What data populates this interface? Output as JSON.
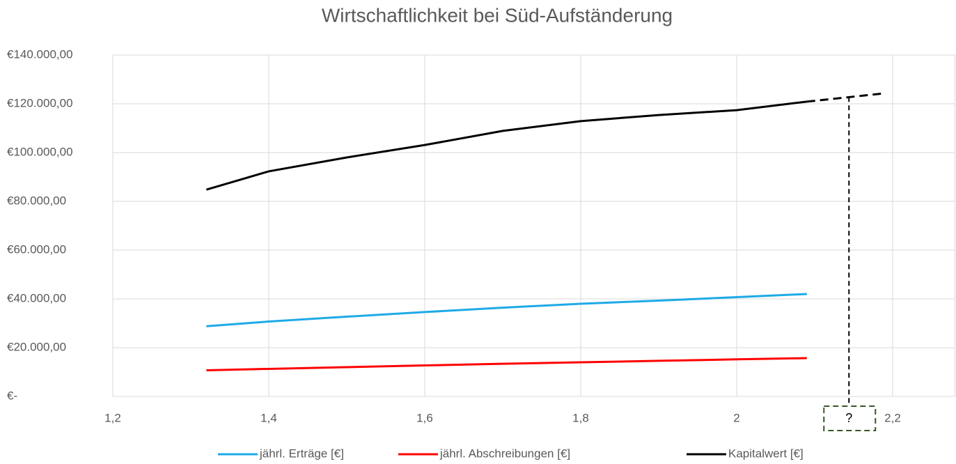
{
  "chart_data": {
    "type": "line",
    "title": "Wirtschaftlichkeit bei Süd-Aufständerung",
    "x": [
      1.32,
      1.4,
      1.5,
      1.6,
      1.7,
      1.8,
      1.9,
      2.0,
      2.09
    ],
    "series": [
      {
        "name": "jährl. Erträge [€]",
        "color": "#1eaae7",
        "values": [
          28800,
          30700,
          32700,
          34600,
          36400,
          38000,
          39300,
          40700,
          42000
        ]
      },
      {
        "name": "jährl. Abschreibungen [€]",
        "color": "#ff0000",
        "values": [
          10700,
          11300,
          12000,
          12700,
          13400,
          14000,
          14600,
          15200,
          15700
        ]
      },
      {
        "name": "Kapitalwert [€]",
        "color": "#000000",
        "values": [
          84800,
          92300,
          98000,
          103100,
          108900,
          112900,
          115400,
          117400,
          120900
        ],
        "projection": {
          "x": [
            2.09,
            2.19
          ],
          "values": [
            120900,
            124300
          ]
        }
      }
    ],
    "annotation": {
      "x": 2.144,
      "value": 122800,
      "label": "?"
    },
    "xlim": [
      1.2,
      2.28
    ],
    "xticks": [
      {
        "value": 1.2,
        "label": "1,2"
      },
      {
        "value": 1.4,
        "label": "1,4"
      },
      {
        "value": 1.6,
        "label": "1,6"
      },
      {
        "value": 1.8,
        "label": "1,8"
      },
      2,
      {
        "value": 2.2,
        "label": "2,2"
      }
    ],
    "ylim": [
      0,
      140000
    ],
    "yticks": [
      {
        "value": 0,
        "label": "€-"
      },
      {
        "value": 20000,
        "label": "€20.000,00"
      },
      {
        "value": 40000,
        "label": "€40.000,00"
      },
      {
        "value": 60000,
        "label": "€60.000,00"
      },
      {
        "value": 80000,
        "label": "€80.000,00"
      },
      {
        "value": 100000,
        "label": "€100.000,00"
      },
      {
        "value": 120000,
        "label": "€120.000,00"
      },
      {
        "value": 140000,
        "label": "€140.000,00"
      }
    ],
    "grid": true,
    "legend": "bottom"
  }
}
